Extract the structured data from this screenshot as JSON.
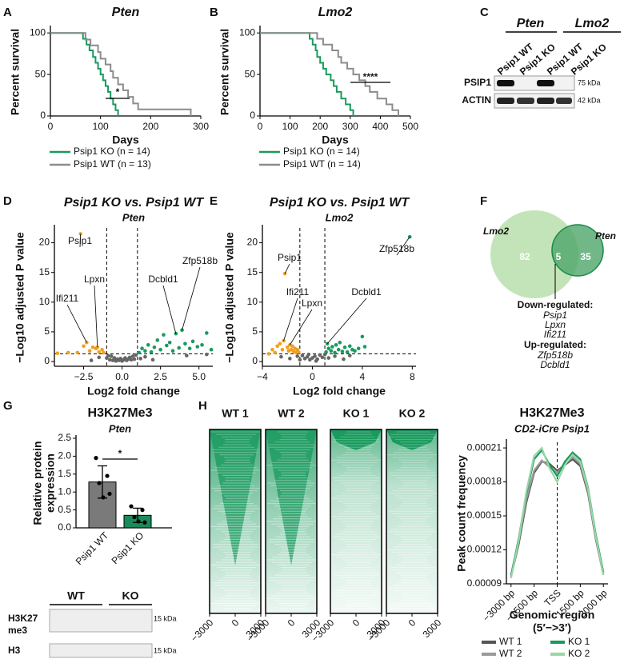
{
  "letters": [
    "A",
    "B",
    "C",
    "D",
    "E",
    "F",
    "G",
    "H"
  ],
  "chart_data": [
    {
      "type": "line",
      "step": true,
      "title": "Pten",
      "ylabel": "Percent survival",
      "xlabel": "Days",
      "xlim": [
        0,
        300
      ],
      "ylim": [
        0,
        105
      ],
      "xticks": [
        0,
        100,
        200,
        300
      ],
      "yticks": [
        0,
        50,
        100
      ],
      "annotation": "*",
      "series": [
        {
          "name": "Psip1 KO (n = 14)",
          "color": "#1a9a5e",
          "x": [
            0,
            65,
            72,
            78,
            85,
            90,
            95,
            100,
            105,
            110,
            115,
            120,
            125,
            130,
            135
          ],
          "values": [
            100,
            93,
            86,
            79,
            71,
            64,
            57,
            50,
            43,
            36,
            29,
            21,
            14,
            7,
            0
          ]
        },
        {
          "name": "Psip1 WT (n = 13)",
          "color": "#8c8c8c",
          "x": [
            0,
            70,
            80,
            95,
            100,
            110,
            120,
            125,
            135,
            145,
            155,
            165,
            175,
            280
          ],
          "values": [
            100,
            92,
            85,
            77,
            69,
            62,
            54,
            46,
            38,
            31,
            23,
            15,
            8,
            0
          ]
        }
      ]
    },
    {
      "type": "line",
      "step": true,
      "title": "Lmo2",
      "ylabel": "Percent survival",
      "xlabel": "Days",
      "xlim": [
        0,
        500
      ],
      "ylim": [
        0,
        105
      ],
      "xticks": [
        0,
        100,
        200,
        300,
        400,
        500
      ],
      "yticks": [
        0,
        50,
        100
      ],
      "annotation": "****",
      "series": [
        {
          "name": "Psip1 KO (n = 14)",
          "color": "#1a9a5e",
          "x": [
            0,
            165,
            175,
            185,
            190,
            200,
            210,
            220,
            235,
            245,
            255,
            270,
            285,
            300,
            310
          ],
          "values": [
            100,
            93,
            86,
            79,
            71,
            64,
            57,
            50,
            43,
            36,
            29,
            21,
            14,
            7,
            0
          ]
        },
        {
          "name": "Psip1 WT (n = 14)",
          "color": "#8c8c8c",
          "x": [
            0,
            190,
            210,
            240,
            260,
            270,
            290,
            310,
            330,
            350,
            365,
            390,
            420,
            440,
            460
          ],
          "values": [
            100,
            93,
            86,
            79,
            71,
            64,
            57,
            50,
            43,
            36,
            29,
            21,
            14,
            7,
            0
          ]
        }
      ]
    },
    {
      "type": "scatter",
      "title": "Psip1 KO vs. Psip1 WT",
      "subtitle": "Pten",
      "ylabel": "−Log10 adjusted P value",
      "xlabel": "Log2 fold change",
      "xlim": [
        -4.4,
        5.9
      ],
      "ylim": [
        -0.8,
        22.5
      ],
      "xticks": [
        {
          "value": -2.5,
          "label": "−2.5"
        },
        {
          "value": 0,
          "label": "0.0"
        },
        {
          "value": 2.5,
          "label": "2.5"
        },
        {
          "value": 5,
          "label": "5.0"
        }
      ],
      "yticks": [
        0,
        5,
        10,
        15,
        20
      ],
      "vlines": [
        -1,
        1
      ],
      "hline": 1.3,
      "series": [
        {
          "color": "#f0a020",
          "x": [
            -4.2,
            -3.5,
            -2.9,
            -2.7,
            -2.5,
            -2.3,
            -2.1,
            -1.9,
            -1.7,
            -1.6,
            -1.5,
            -1.3,
            -1.2
          ],
          "values": [
            1.4,
            1.5,
            1.5,
            21.5,
            2.6,
            3.2,
            1.8,
            2.4,
            2.2,
            2.4,
            1.6,
            2.0,
            1.5
          ]
        },
        {
          "color": "#666666",
          "x": [
            -1.0,
            -0.9,
            -0.8,
            -0.7,
            -0.6,
            -0.5,
            -0.4,
            -0.3,
            -0.2,
            -0.1,
            0,
            0.1,
            0.2,
            0.3,
            0.4,
            0.5,
            0.6,
            0.7,
            0.8,
            0.9,
            1.2,
            1.5,
            2.0,
            -2.0,
            -1.5,
            4.2,
            5.5
          ],
          "values": [
            0.6,
            1.0,
            0.3,
            0.9,
            0.2,
            0.6,
            0.1,
            0.4,
            0.2,
            0.5,
            0.1,
            0.3,
            0.6,
            0.2,
            0.4,
            0.7,
            0.3,
            0.9,
            0.4,
            1.1,
            0.5,
            0.8,
            0.3,
            0.2,
            0.7,
            1.0,
            1.2
          ]
        },
        {
          "color": "#1a9a5e",
          "x": [
            1.1,
            1.3,
            1.5,
            1.7,
            1.9,
            2.1,
            2.3,
            2.5,
            2.7,
            2.9,
            3.1,
            3.3,
            3.5,
            3.7,
            3.9,
            4.1,
            4.4,
            4.6,
            4.9,
            5.2,
            5.5,
            5.8
          ],
          "values": [
            1.5,
            2.2,
            1.8,
            2.8,
            1.6,
            2.4,
            3.6,
            2.0,
            4.5,
            2.7,
            3.2,
            1.8,
            4.7,
            2.3,
            5.3,
            3.0,
            2.2,
            3.4,
            2.5,
            2.8,
            4.8,
            2.0
          ]
        }
      ],
      "annotations": [
        {
          "text": "Psip1",
          "x": -2.7,
          "y": 21.5
        },
        {
          "text": "Lpxn",
          "x": -1.6,
          "y": 2.4
        },
        {
          "text": "Ifi211",
          "x": -2.3,
          "y": 3.2
        },
        {
          "text": "Dcbld1",
          "x": 3.5,
          "y": 4.7
        },
        {
          "text": "Zfp518b",
          "x": 3.9,
          "y": 5.3
        }
      ]
    },
    {
      "type": "scatter",
      "title": "Psip1 KO vs. Psip1 WT",
      "subtitle": "Lmo2",
      "ylabel": "−Log10 adjusted P value",
      "xlabel": "Log2 fold change",
      "xlim": [
        -4,
        8.3
      ],
      "ylim": [
        -0.8,
        22.5
      ],
      "xticks": [
        {
          "value": -4,
          "label": "−4"
        },
        0,
        4,
        8
      ],
      "yticks": [
        0,
        5,
        10,
        15,
        20
      ],
      "vlines": [
        -1,
        1
      ],
      "hline": 1.3,
      "series": [
        {
          "color": "#f0a020",
          "x": [
            -3.5,
            -3.2,
            -3.0,
            -2.8,
            -2.6,
            -2.4,
            -2.3,
            -2.2,
            -2.0,
            -1.9,
            -1.8,
            -1.7,
            -1.6,
            -1.5,
            -1.4,
            -1.3,
            -1.2,
            -1.1
          ],
          "values": [
            1.3,
            2.0,
            1.5,
            2.6,
            3.0,
            2.0,
            3.5,
            14.8,
            2.4,
            1.8,
            2.8,
            2.0,
            2.6,
            1.7,
            2.2,
            1.5,
            2.0,
            1.6
          ]
        },
        {
          "color": "#666666",
          "x": [
            -2.5,
            -1.8,
            -1.2,
            -1.0,
            -0.8,
            -0.6,
            -0.4,
            -0.2,
            0,
            0.2,
            0.4,
            0.6,
            0.8,
            1.0,
            1.3,
            1.8,
            2.5,
            3.0,
            -0.3,
            0.3
          ],
          "values": [
            0.8,
            0.5,
            0.9,
            0.3,
            1.0,
            0.5,
            0.8,
            0.3,
            0.6,
            0.9,
            0.4,
            1.1,
            0.7,
            1.2,
            0.6,
            0.9,
            0.4,
            1.0,
            1.2,
            0.1
          ]
        },
        {
          "color": "#1a9a5e",
          "x": [
            1.1,
            1.2,
            1.3,
            1.5,
            1.6,
            1.8,
            1.9,
            2.1,
            2.2,
            2.4,
            2.6,
            2.8,
            3.0,
            3.2,
            3.4,
            3.7,
            4.0,
            4.2,
            7.8
          ],
          "values": [
            1.6,
            3.0,
            2.2,
            1.8,
            2.5,
            1.5,
            2.8,
            2.0,
            3.2,
            1.7,
            2.4,
            1.6,
            2.6,
            2.0,
            1.8,
            2.2,
            4.2,
            2.5,
            21.0
          ]
        }
      ],
      "annotations": [
        {
          "text": "Psip1",
          "x": -2.2,
          "y": 14.8
        },
        {
          "text": "Ifi211",
          "x": -2.3,
          "y": 3.5
        },
        {
          "text": "Lpxn",
          "x": -1.8,
          "y": 2.8
        },
        {
          "text": "Dcbld1",
          "x": 1.2,
          "y": 3.0
        },
        {
          "text": "Zfp518b",
          "x": 7.8,
          "y": 21.0
        }
      ]
    },
    {
      "type": "bar",
      "title": "H3K27Me3",
      "subtitle": "Pten",
      "ylabel": [
        "Relative protein",
        "expression"
      ],
      "categories": [
        "Psip1 WT",
        "Psip1 KO"
      ],
      "values": [
        1.28,
        0.35
      ],
      "errors": [
        0.45,
        0.2
      ],
      "colors": [
        "#7a7a7a",
        "#1a8a5a"
      ],
      "points": [
        [
          1.95,
          1.45,
          1.25,
          0.95,
          0.85
        ],
        [
          0.6,
          0.5,
          0.3,
          0.15,
          0.18
        ]
      ],
      "ylim": [
        0,
        2.5
      ],
      "yticks": [
        {
          "value": 0,
          "label": "0.0"
        },
        {
          "value": 0.5,
          "label": "0.5"
        },
        {
          "value": 1,
          "label": "1.0"
        },
        {
          "value": 1.5,
          "label": "1.5"
        },
        {
          "value": 2,
          "label": "2.0"
        },
        {
          "value": 2.5,
          "label": "2.5"
        }
      ],
      "annotation": "*"
    },
    {
      "type": "line",
      "title": "H3K27Me3",
      "subtitle": "CD2-iCre Psip1",
      "ylabel": "Peak count frequency",
      "xlabel": [
        "Genomic region",
        "(5′−>3′)"
      ],
      "x": [
        -3000,
        -2500,
        -2000,
        -1500,
        -1000,
        -500,
        0,
        500,
        1000,
        1500,
        2000,
        2500,
        3000
      ],
      "xlim": [
        -3300,
        3300
      ],
      "ylim": [
        9e-05,
        0.000215
      ],
      "xticks": [
        {
          "value": -3000,
          "label": "−3000 bp"
        },
        {
          "value": -1500,
          "label": "−1500 bp"
        },
        {
          "value": 0,
          "label": "TSS"
        },
        {
          "value": 1500,
          "label": "1500 bp"
        },
        {
          "value": 3000,
          "label": "3000 bp"
        }
      ],
      "yticks": [
        9e-05,
        0.00012,
        0.00015,
        0.00018,
        0.00021
      ],
      "vline": 0,
      "series": [
        {
          "name": "WT 1",
          "color": "#555555",
          "values": [
            9.6e-05,
            0.000125,
            0.000162,
            0.000188,
            0.000198,
            0.000196,
            0.00019,
            0.000195,
            0.0002,
            0.000194,
            0.00017,
            0.00013,
            9.8e-05
          ]
        },
        {
          "name": "WT 2",
          "color": "#9a9a9a",
          "values": [
            9.8e-05,
            0.000128,
            0.000165,
            0.00019,
            0.000199,
            0.000193,
            0.000188,
            0.000196,
            0.000202,
            0.000196,
            0.000172,
            0.000132,
            0.0001
          ]
        },
        {
          "name": "KO 1",
          "color": "#1a9a5e",
          "values": [
            9.7e-05,
            0.00013,
            0.00017,
            0.0002,
            0.000208,
            0.000195,
            0.000185,
            0.000198,
            0.000206,
            0.0002,
            0.000175,
            0.000134,
            0.0001
          ]
        },
        {
          "name": "KO 2",
          "color": "#9ad6a6",
          "values": [
            9.5e-05,
            0.000128,
            0.000172,
            0.000203,
            0.00021,
            0.000192,
            0.00018,
            0.000195,
            0.000204,
            0.000198,
            0.000174,
            0.000132,
            9.8e-05
          ]
        }
      ]
    }
  ],
  "blot_c": {
    "groups": [
      "Pten",
      "Lmo2"
    ],
    "lanes": [
      "Psip1 WT",
      "Psip1 KO",
      "Psip1 WT",
      "Psip1 KO"
    ],
    "rows": [
      "PSIP1",
      "ACTIN"
    ],
    "sizes": [
      "75 kDa",
      "42 kDa"
    ]
  },
  "blot_f": {
    "groups": [
      "WT",
      "KO"
    ],
    "rows": [
      [
        "H3K27",
        "me3"
      ],
      [
        "H3"
      ]
    ],
    "sizes": [
      "15 kDa",
      "15 kDa"
    ]
  },
  "heatmaps": {
    "samples": [
      "WT 1",
      "WT 2",
      "KO 1",
      "KO 2"
    ],
    "xticks": [
      "−3000",
      "0",
      "3000"
    ]
  },
  "venn": {
    "sets": [
      "Lmo2",
      "Pten"
    ],
    "counts": [
      "82",
      "5",
      "35"
    ],
    "down_title": "Down-regulated:",
    "down": [
      "Psip1",
      "Lpxn",
      "Ifi211"
    ],
    "up_title": "Up-regulated:",
    "up": [
      "Zfp518b",
      "Dcbld1"
    ]
  }
}
